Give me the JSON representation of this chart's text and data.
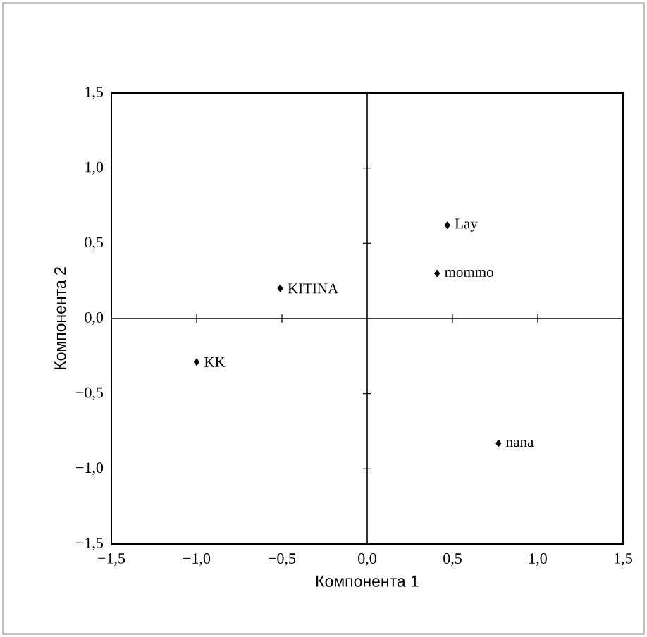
{
  "chart_data": {
    "type": "scatter",
    "xlabel": "Компонента 1",
    "ylabel": "Компонента 2",
    "x": [
      0.47,
      0.41,
      -0.51,
      -1.0,
      0.77
    ],
    "series": [
      {
        "color": "#000000",
        "values": [
          0.62,
          0.3,
          0.2,
          -0.29,
          -0.83
        ]
      }
    ],
    "marker": "diamond",
    "annotations": [
      {
        "text": "Lay",
        "x": 0.47,
        "y": 0.62
      },
      {
        "text": "mommo",
        "x": 0.41,
        "y": 0.3
      },
      {
        "text": "KITINA",
        "x": -0.51,
        "y": 0.2
      },
      {
        "text": "KK",
        "x": -1.0,
        "y": -0.29
      },
      {
        "text": "nana",
        "x": 0.77,
        "y": -0.83
      }
    ],
    "xlim": [
      -1.5,
      1.5
    ],
    "ylim": [
      -1.5,
      1.5
    ],
    "xticks": [
      {
        "value": -1.5,
        "label": "−1,5"
      },
      {
        "value": -1.0,
        "label": "−1,0"
      },
      {
        "value": -0.5,
        "label": "−0,5"
      },
      {
        "value": 0.0,
        "label": "0,0"
      },
      {
        "value": 0.5,
        "label": "0,5"
      },
      {
        "value": 1.0,
        "label": "1,0"
      },
      {
        "value": 1.5,
        "label": "1,5"
      }
    ],
    "yticks": [
      {
        "value": -1.5,
        "label": "−1,5"
      },
      {
        "value": -1.0,
        "label": "−1,0"
      },
      {
        "value": -0.5,
        "label": "−0,5"
      },
      {
        "value": 0.0,
        "label": "0,0"
      },
      {
        "value": 0.5,
        "label": "0,5"
      },
      {
        "value": 1.0,
        "label": "1,0"
      },
      {
        "value": 1.5,
        "label": "1,5"
      }
    ]
  }
}
